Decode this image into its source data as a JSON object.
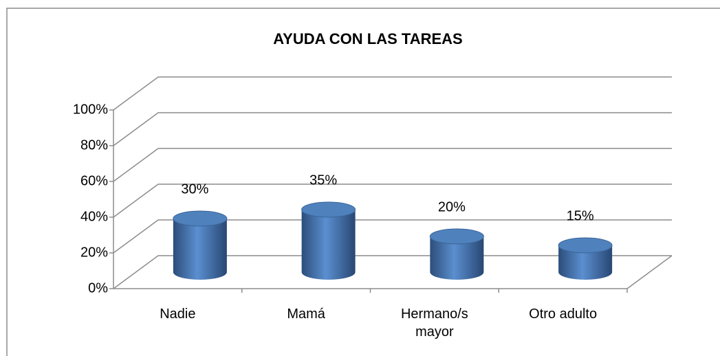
{
  "chart_data": {
    "type": "bar3d",
    "title": "AYUDA CON LAS TAREAS",
    "categories": [
      "Nadie",
      "Mamá",
      "Hermano/s mayor",
      "Otro adulto"
    ],
    "values": [
      30,
      35,
      20,
      15
    ],
    "value_labels": [
      "30%",
      "35%",
      "20%",
      "15%"
    ],
    "color": "#4f81bd",
    "ylim": [
      0,
      100
    ],
    "yticks": [
      {
        "value": 0,
        "label": "0%"
      },
      {
        "value": 20,
        "label": "20%"
      },
      {
        "value": 40,
        "label": "40%"
      },
      {
        "value": 60,
        "label": "60%"
      },
      {
        "value": 80,
        "label": "80%"
      },
      {
        "value": 100,
        "label": "100%"
      }
    ],
    "grid": true
  }
}
